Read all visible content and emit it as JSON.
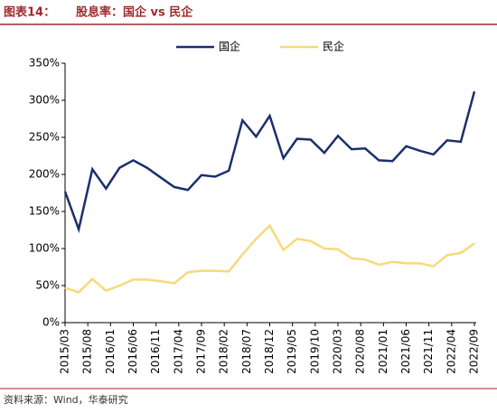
{
  "chart_data": {
    "type": "line",
    "label": "图表14：",
    "title": "股息率：国企  vs   民企",
    "source": "资料来源：Wind，华泰研究",
    "x": [
      "2015/03",
      "2015/06",
      "2015/09",
      "2015/12",
      "2016/03",
      "2016/06",
      "2016/09",
      "2016/12",
      "2017/03",
      "2017/06",
      "2017/09",
      "2017/12",
      "2018/03",
      "2018/06",
      "2018/09",
      "2018/12",
      "2019/03",
      "2019/06",
      "2019/09",
      "2019/12",
      "2020/03",
      "2020/06",
      "2020/09",
      "2020/12",
      "2021/03",
      "2021/06",
      "2021/09",
      "2021/12",
      "2022/03",
      "2022/06",
      "2022/09"
    ],
    "xlim": [
      "2015/03",
      "2022/09"
    ],
    "xticks": [
      "2015/03",
      "2015/08",
      "2016/01",
      "2016/06",
      "2016/11",
      "2017/04",
      "2017/09",
      "2018/02",
      "2018/07",
      "2018/12",
      "2019/05",
      "2019/10",
      "2020/03",
      "2020/08",
      "2021/01",
      "2021/06",
      "2021/11",
      "2022/04",
      "2022/09"
    ],
    "series": [
      {
        "name": "国企",
        "color": "#1b2f6b",
        "values": [
          177,
          126,
          207,
          181,
          209,
          219,
          209,
          196,
          183,
          179,
          199,
          197,
          205,
          273,
          251,
          279,
          222,
          248,
          247,
          229,
          252,
          234,
          235,
          219,
          218,
          238,
          232,
          227,
          246,
          244,
          312
        ]
      },
      {
        "name": "民企",
        "color": "#f7d97c",
        "values": [
          47,
          41,
          59,
          43,
          50,
          58,
          58,
          56,
          53,
          68,
          70,
          70,
          69,
          92,
          113,
          131,
          98,
          113,
          110,
          100,
          99,
          87,
          85,
          78,
          82,
          80,
          80,
          76,
          91,
          94,
          107
        ]
      }
    ],
    "ylim": [
      0,
      350
    ],
    "yticks": [
      {
        "value": 0,
        "label": "0%"
      },
      {
        "value": 50,
        "label": "50%"
      },
      {
        "value": 100,
        "label": "100%"
      },
      {
        "value": 150,
        "label": "150%"
      },
      {
        "value": 200,
        "label": "200%"
      },
      {
        "value": 250,
        "label": "250%"
      },
      {
        "value": 300,
        "label": "300%"
      },
      {
        "value": 350,
        "label": "350%"
      }
    ],
    "grid": false,
    "legend": "top"
  }
}
